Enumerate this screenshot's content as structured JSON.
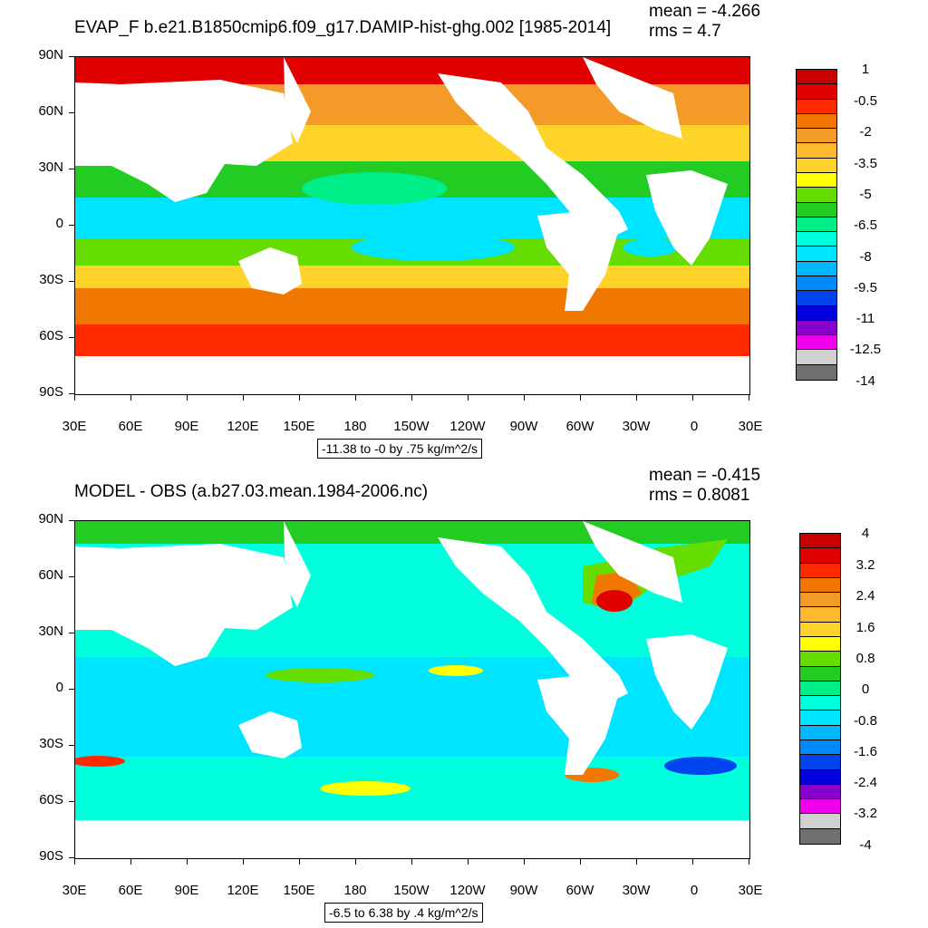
{
  "panels": [
    {
      "title": "EVAP_F b.e21.B1850cmip6.f09_g17.DAMIP-hist-ghg.002 [1985-2014]",
      "mean": "mean = -4.266",
      "rms": "rms = 4.7",
      "info": "-11.38 to -0 by .75 kg/m^2/s",
      "lat_labels": [
        "90N",
        "60N",
        "30N",
        "0",
        "30S",
        "60S",
        "90S"
      ],
      "lon_labels": [
        "30E",
        "60E",
        "90E",
        "120E",
        "150E",
        "180",
        "150W",
        "120W",
        "90W",
        "60W",
        "30W",
        "0",
        "30E"
      ],
      "colorbar": {
        "labels": [
          "1",
          "-0.5",
          "-2",
          "-3.5",
          "-5",
          "-6.5",
          "-8",
          "-9.5",
          "-11",
          "-12.5",
          "-14"
        ],
        "colors": [
          "#c80000",
          "#e00000",
          "#ff2a00",
          "#f07800",
          "#f49a28",
          "#ffb830",
          "#ffd42a",
          "#ffff00",
          "#66dd00",
          "#22cc22",
          "#00ee88",
          "#00ffdd",
          "#00e5ff",
          "#00b8ff",
          "#0088ff",
          "#0044ee",
          "#0000dd",
          "#8800cc",
          "#ee00ee",
          "#d0d0d0",
          "#707070"
        ]
      }
    },
    {
      "title": "MODEL - OBS (a.b27.03.mean.1984-2006.nc)",
      "mean": "mean = -0.415",
      "rms": "rms = 0.8081",
      "info": "-6.5 to 6.38 by .4 kg/m^2/s",
      "lat_labels": [
        "90N",
        "60N",
        "30N",
        "0",
        "30S",
        "60S",
        "90S"
      ],
      "lon_labels": [
        "30E",
        "60E",
        "90E",
        "120E",
        "150E",
        "180",
        "150W",
        "120W",
        "90W",
        "60W",
        "30W",
        "0",
        "30E"
      ],
      "colorbar": {
        "labels": [
          "4",
          "3.2",
          "2.4",
          "1.6",
          "0.8",
          "0",
          "-0.8",
          "-1.6",
          "-2.4",
          "-3.2",
          "-4"
        ],
        "colors": [
          "#c80000",
          "#e00000",
          "#ff2a00",
          "#f07800",
          "#f49a28",
          "#ffb830",
          "#ffd42a",
          "#ffff00",
          "#66dd00",
          "#22cc22",
          "#00ee88",
          "#00ffdd",
          "#00e5ff",
          "#00b8ff",
          "#0088ff",
          "#0044ee",
          "#0000dd",
          "#8800cc",
          "#ee00ee",
          "#d0d0d0",
          "#707070"
        ]
      }
    }
  ]
}
